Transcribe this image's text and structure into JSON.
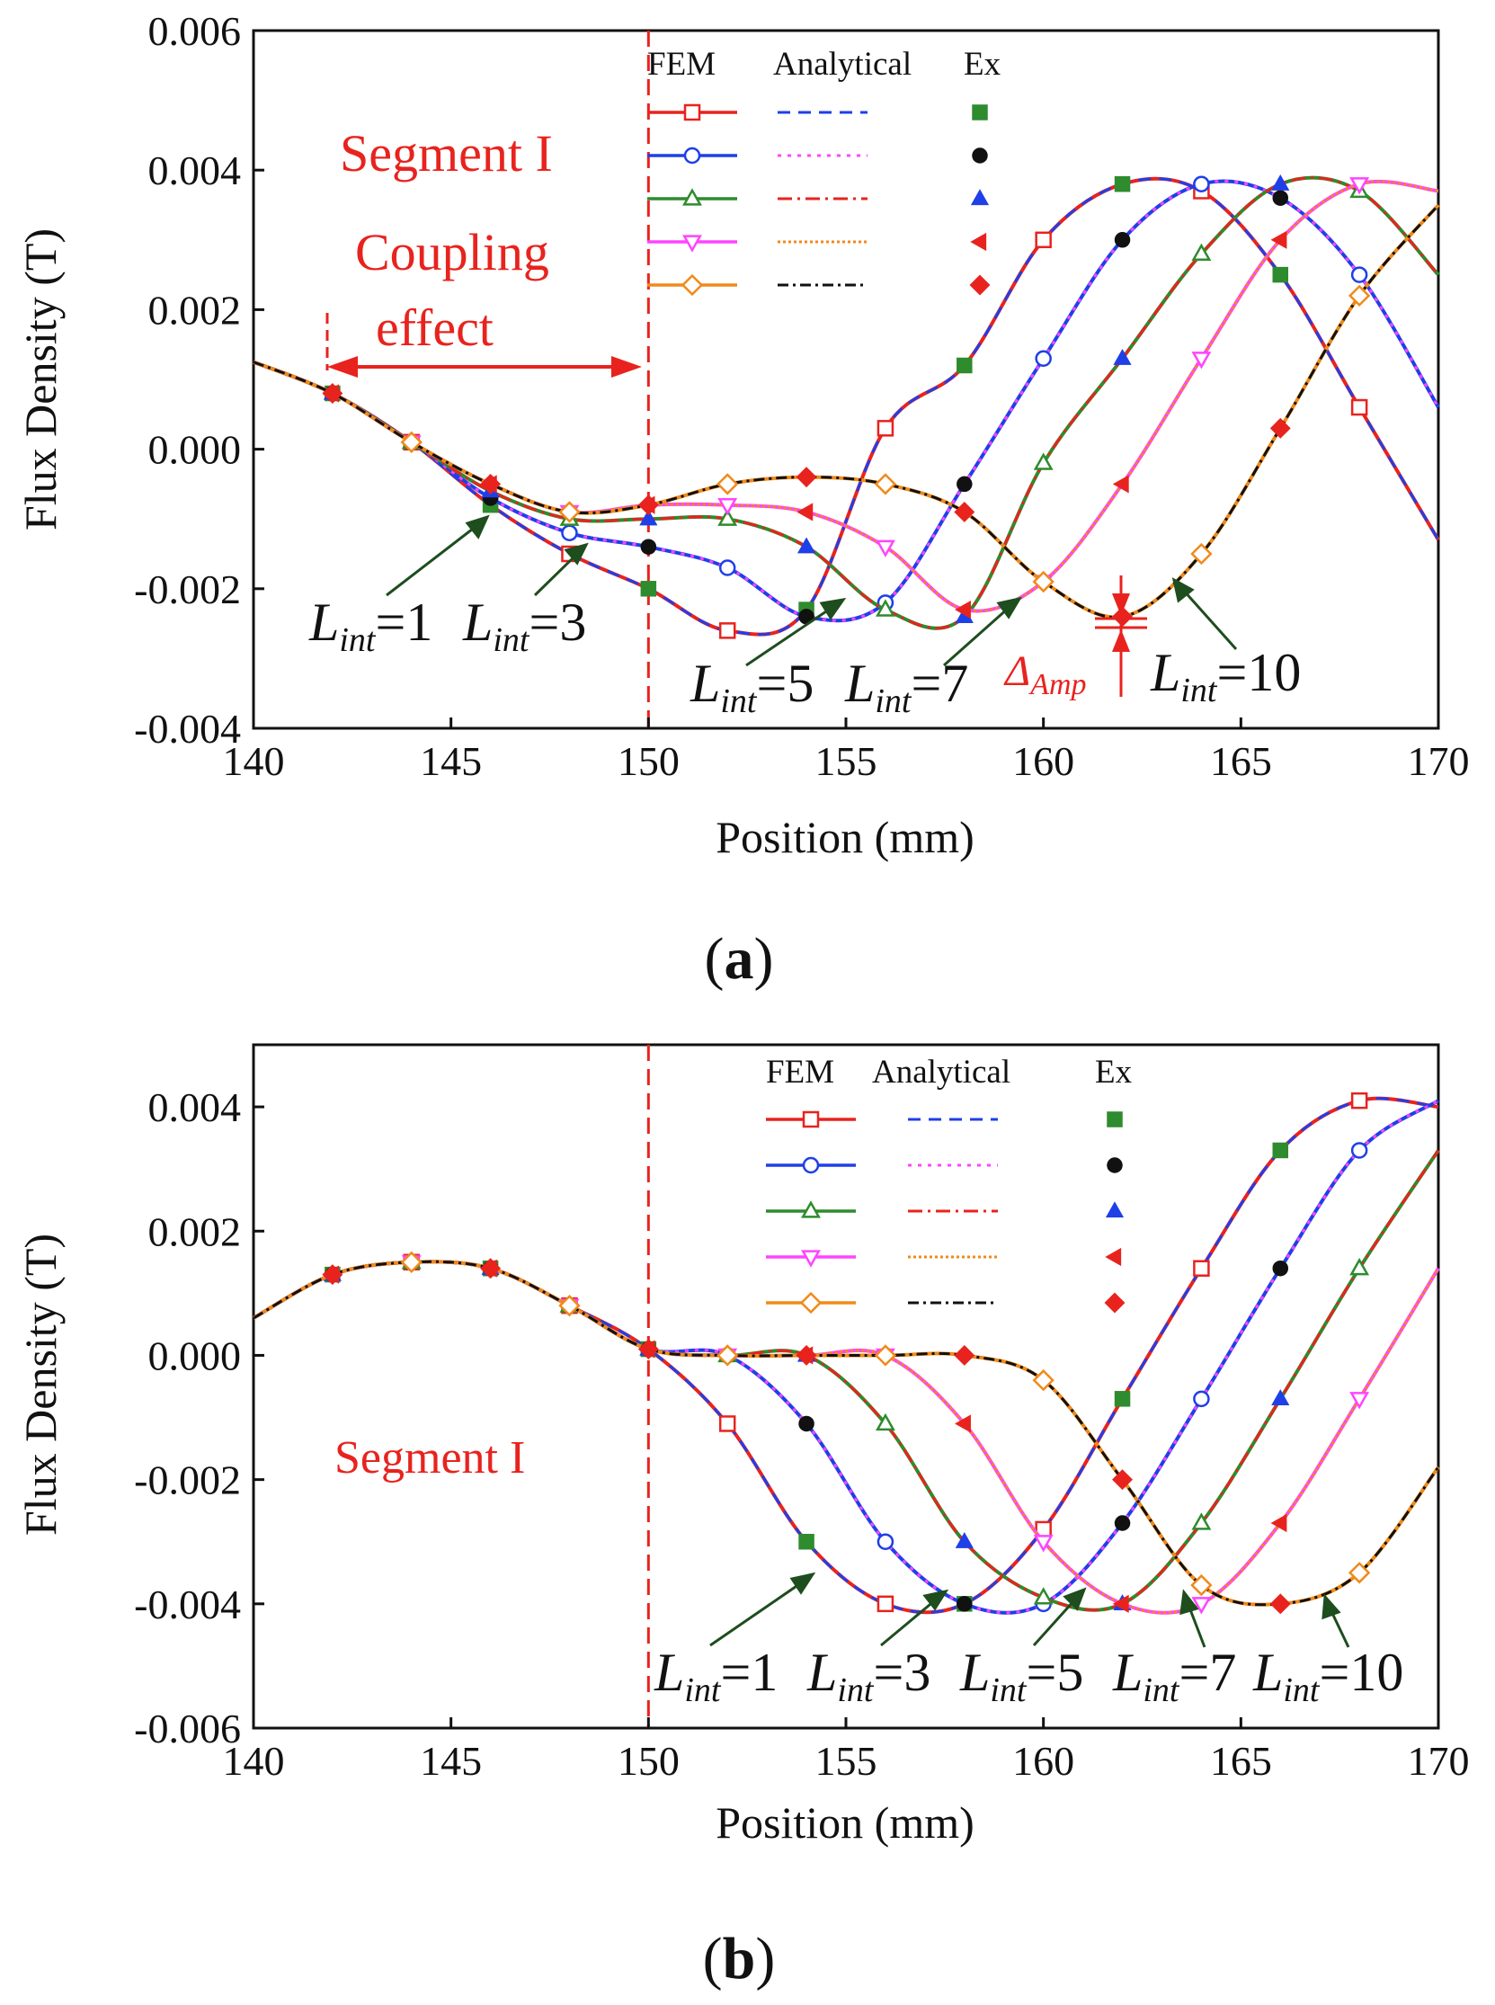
{
  "legend_header": {
    "fem": "FEM",
    "analytical": "Analytical",
    "ex": "Ex"
  },
  "series_styles": [
    {
      "name": "Lint=1",
      "fem_color": "#e8231e",
      "fem_marker": "square",
      "ana_color": "#1f3fe8",
      "ana_dash": "14,9",
      "ex_color": "#2e8b2e",
      "ex_marker": "square"
    },
    {
      "name": "Lint=3",
      "fem_color": "#1f3fe8",
      "fem_marker": "circle",
      "ana_color": "#ff44ff",
      "ana_dash": "4,7",
      "ex_color": "#111111",
      "ex_marker": "circle"
    },
    {
      "name": "Lint=5",
      "fem_color": "#2e8b2e",
      "fem_marker": "triangle-up",
      "ana_color": "#e8231e",
      "ana_dash": "16,6,3,6",
      "ex_color": "#1f3fe8",
      "ex_marker": "triangle-up"
    },
    {
      "name": "Lint=7",
      "fem_color": "#ff44ff",
      "fem_marker": "triangle-down",
      "ana_color": "#f08a1a",
      "ana_dash": "3,3",
      "ex_color": "#e8231e",
      "ex_marker": "triangle-left"
    },
    {
      "name": "Lint=10",
      "fem_color": "#f08a1a",
      "fem_marker": "diamond",
      "ana_color": "#111111",
      "ana_dash": "12,5,3,5",
      "ex_color": "#e8231e",
      "ex_marker": "diamond"
    }
  ],
  "chart_data": [
    {
      "type": "line",
      "panel": "a",
      "caption": "(a)",
      "xlabel": "Position (mm)",
      "ylabel": "Flux Density (T)",
      "xlim": [
        140,
        170
      ],
      "ylim": [
        -0.004,
        0.006
      ],
      "xticks": [
        "140",
        "145",
        "150",
        "155",
        "160",
        "165",
        "170"
      ],
      "yticks": [
        "-0.004",
        "-0.002",
        "0.000",
        "0.002",
        "0.004",
        "0.006"
      ],
      "ytick_values": [
        -0.004,
        -0.002,
        0,
        0.002,
        0.004,
        0.006
      ],
      "segment_line_x": 150,
      "annotations": {
        "segment": "Segment I",
        "coupling1": "Coupling",
        "coupling2": "effect",
        "delta": "Δ",
        "delta_sub": "Amp"
      },
      "series": [
        {
          "name": "Lint=1",
          "label_sub": "int",
          "label_value": "=1",
          "x": [
            140,
            142,
            144,
            146,
            148,
            150,
            152,
            154,
            156,
            158,
            160,
            162,
            164,
            166,
            168,
            170
          ],
          "y": [
            0.00125,
            0.0008,
            0.0001,
            -0.0008,
            -0.0015,
            -0.002,
            -0.0026,
            -0.0023,
            0.0003,
            0.0012,
            0.003,
            0.0038,
            0.0037,
            0.0025,
            0.0006,
            -0.0013
          ]
        },
        {
          "name": "Lint=3",
          "label_sub": "int",
          "label_value": "=3",
          "x": [
            140,
            142,
            144,
            146,
            148,
            150,
            152,
            154,
            156,
            158,
            160,
            162,
            164,
            166,
            168,
            170
          ],
          "y": [
            0.00125,
            0.0008,
            0.0001,
            -0.0007,
            -0.0012,
            -0.0014,
            -0.0017,
            -0.0024,
            -0.0022,
            -0.0005,
            0.0013,
            0.003,
            0.0038,
            0.0036,
            0.0025,
            0.0006
          ]
        },
        {
          "name": "Lint=5",
          "label_sub": "int",
          "label_value": "=5",
          "x": [
            140,
            142,
            144,
            146,
            148,
            150,
            152,
            154,
            156,
            158,
            160,
            162,
            164,
            166,
            168,
            170
          ],
          "y": [
            0.00125,
            0.0008,
            0.0001,
            -0.0006,
            -0.001,
            -0.001,
            -0.001,
            -0.0014,
            -0.0023,
            -0.0024,
            -0.0002,
            0.0013,
            0.0028,
            0.0038,
            0.0037,
            0.0025
          ]
        },
        {
          "name": "Lint=7",
          "label_sub": "int",
          "label_value": "=7",
          "x": [
            140,
            142,
            144,
            146,
            148,
            150,
            152,
            154,
            156,
            158,
            160,
            162,
            164,
            166,
            168,
            170
          ],
          "y": [
            0.00125,
            0.0008,
            0.0001,
            -0.0005,
            -0.0009,
            -0.0008,
            -0.0008,
            -0.0009,
            -0.0014,
            -0.0023,
            -0.0019,
            -0.0005,
            0.0013,
            0.003,
            0.0038,
            0.0037
          ]
        },
        {
          "name": "Lint=10",
          "label_sub": "int",
          "label_value": "=10",
          "x": [
            140,
            142,
            144,
            146,
            148,
            150,
            152,
            154,
            156,
            158,
            160,
            162,
            164,
            166,
            168,
            170
          ],
          "y": [
            0.00125,
            0.0008,
            0.0001,
            -0.0005,
            -0.0009,
            -0.0008,
            -0.0005,
            -0.0004,
            -0.0005,
            -0.0009,
            -0.0019,
            -0.0024,
            -0.0015,
            0.0003,
            0.0022,
            0.0035
          ]
        }
      ]
    },
    {
      "type": "line",
      "panel": "b",
      "caption": "(b)",
      "xlabel": "Position (mm)",
      "ylabel": "Flux Density (T)",
      "xlim": [
        140,
        170
      ],
      "ylim": [
        -0.006,
        0.005
      ],
      "xticks": [
        "140",
        "145",
        "150",
        "155",
        "160",
        "165",
        "170"
      ],
      "yticks": [
        "-0.006",
        "-0.004",
        "-0.002",
        "0.000",
        "0.002",
        "0.004"
      ],
      "ytick_values": [
        -0.006,
        -0.004,
        -0.002,
        0,
        0.002,
        0.004
      ],
      "segment_line_x": 150,
      "annotations": {
        "segment": "Segment I"
      },
      "series": [
        {
          "name": "Lint=1",
          "label_sub": "int",
          "label_value": "=1",
          "x": [
            140,
            142,
            144,
            146,
            148,
            150,
            152,
            154,
            156,
            158,
            160,
            162,
            164,
            166,
            168,
            170
          ],
          "y": [
            0.0006,
            0.0013,
            0.0015,
            0.0014,
            0.0008,
            0.0001,
            -0.0011,
            -0.003,
            -0.004,
            -0.004,
            -0.0028,
            -0.0007,
            0.0014,
            0.0033,
            0.0041,
            0.004
          ]
        },
        {
          "name": "Lint=3",
          "label_sub": "int",
          "label_value": "=3",
          "x": [
            140,
            142,
            144,
            146,
            148,
            150,
            152,
            154,
            156,
            158,
            160,
            162,
            164,
            166,
            168,
            170
          ],
          "y": [
            0.0006,
            0.0013,
            0.0015,
            0.0014,
            0.0008,
            0.0001,
            0,
            -0.0011,
            -0.003,
            -0.004,
            -0.004,
            -0.0027,
            -0.0007,
            0.0014,
            0.0033,
            0.0041
          ]
        },
        {
          "name": "Lint=5",
          "label_sub": "int",
          "label_value": "=5",
          "x": [
            140,
            142,
            144,
            146,
            148,
            150,
            152,
            154,
            156,
            158,
            160,
            162,
            164,
            166,
            168,
            170
          ],
          "y": [
            0.0006,
            0.0013,
            0.0015,
            0.0014,
            0.0008,
            0.0001,
            0,
            0,
            -0.0011,
            -0.003,
            -0.0039,
            -0.004,
            -0.0027,
            -0.0007,
            0.0014,
            0.0033
          ]
        },
        {
          "name": "Lint=7",
          "label_sub": "int",
          "label_value": "=7",
          "x": [
            140,
            142,
            144,
            146,
            148,
            150,
            152,
            154,
            156,
            158,
            160,
            162,
            164,
            166,
            168,
            170
          ],
          "y": [
            0.0006,
            0.0013,
            0.0015,
            0.0014,
            0.0008,
            0.0001,
            0,
            0,
            0,
            -0.0011,
            -0.003,
            -0.004,
            -0.004,
            -0.0027,
            -0.0007,
            0.0014
          ]
        },
        {
          "name": "Lint=10",
          "label_sub": "int",
          "label_value": "=10",
          "x": [
            140,
            142,
            144,
            146,
            148,
            150,
            152,
            154,
            156,
            158,
            160,
            162,
            164,
            166,
            168,
            170
          ],
          "y": [
            0.0006,
            0.0013,
            0.0015,
            0.0014,
            0.0008,
            0.0001,
            0,
            0,
            0,
            0,
            -0.0004,
            -0.002,
            -0.0037,
            -0.004,
            -0.0035,
            -0.0018
          ]
        }
      ]
    }
  ]
}
